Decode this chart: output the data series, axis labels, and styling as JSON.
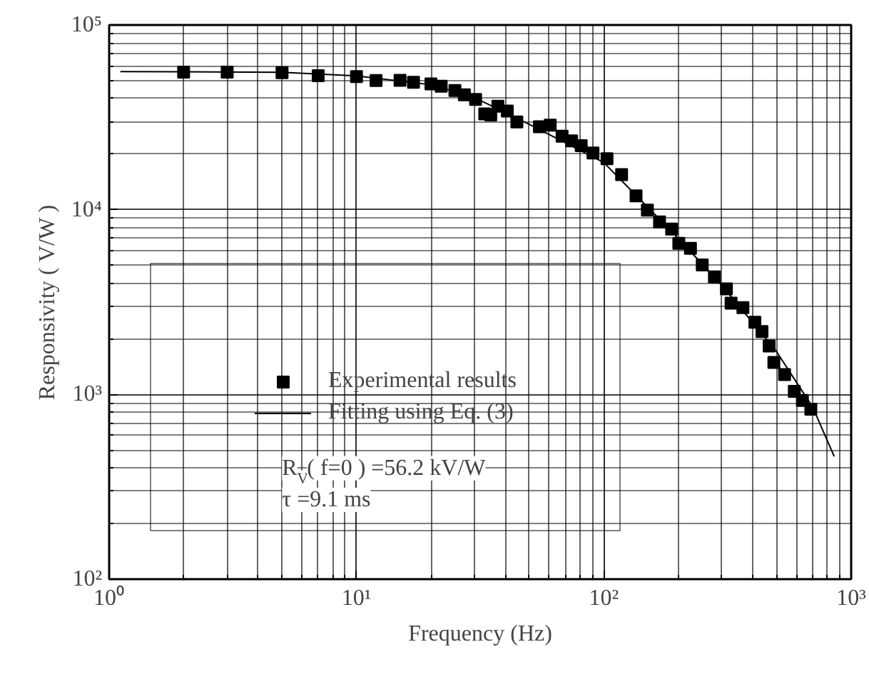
{
  "chart_data": {
    "type": "scatter",
    "xlabel": "Frequency (Hz)",
    "ylabel": "Responsivity ( V/W )",
    "log": "xy",
    "grid": true,
    "legend": "bottom left",
    "xlim": [
      1,
      1000
    ],
    "ylim": [
      100,
      100000
    ],
    "xticks": [
      {
        "value": 1,
        "label": "10⁰"
      },
      {
        "value": 10,
        "label": "10¹"
      },
      {
        "value": 100,
        "label": "10²"
      },
      {
        "value": 1000,
        "label": "10³"
      }
    ],
    "yticks": [
      {
        "value": 100,
        "label": "10²"
      },
      {
        "value": 1000,
        "label": "10³"
      },
      {
        "value": 10000,
        "label": "10⁴"
      },
      {
        "value": 100000,
        "label": "10⁵"
      }
    ],
    "annotations": [
      "R$_{V}$( f=0 ) =56.2 kV/W",
      "τ =9.1 ms"
    ],
    "series": [
      {
        "name": "Experimental results",
        "type": "scatter",
        "marker": "square",
        "color": "#000000",
        "x": [
          2,
          3,
          5,
          7,
          10,
          12,
          15,
          17,
          20,
          22,
          25,
          27.3,
          30.3,
          33,
          34.9,
          37.3,
          40.7,
          44.5,
          54.9,
          60.7,
          67.8,
          74.1,
          81,
          90.4,
          103,
          118,
          135,
          150,
          168,
          188,
          201,
          224,
          250,
          280,
          313,
          327,
          365,
          408,
          436,
          466,
          487,
          538,
          589,
          635,
          687
        ],
        "values": [
          55600,
          55600,
          55200,
          53100,
          52600,
          50000,
          50200,
          49000,
          48000,
          46600,
          44200,
          41900,
          39500,
          33000,
          32600,
          36300,
          34200,
          29900,
          28100,
          28700,
          25000,
          23600,
          22200,
          20300,
          18900,
          15500,
          11900,
          9950,
          8590,
          7850,
          6570,
          6180,
          5020,
          4330,
          3730,
          3120,
          2950,
          2460,
          2190,
          1830,
          1490,
          1280,
          1040,
          927,
          832
        ]
      },
      {
        "name": "Fitting using Eq. (3)",
        "type": "line",
        "color": "#000000",
        "line_style": "solid",
        "marker": "none",
        "x": [
          1.11,
          5,
          10,
          20,
          30,
          50,
          100,
          200,
          300,
          500,
          700,
          854
        ],
        "values": [
          56000,
          55500,
          53000,
          47500,
          40500,
          29000,
          18000,
          7000,
          3900,
          1700,
          850,
          462
        ]
      }
    ]
  }
}
